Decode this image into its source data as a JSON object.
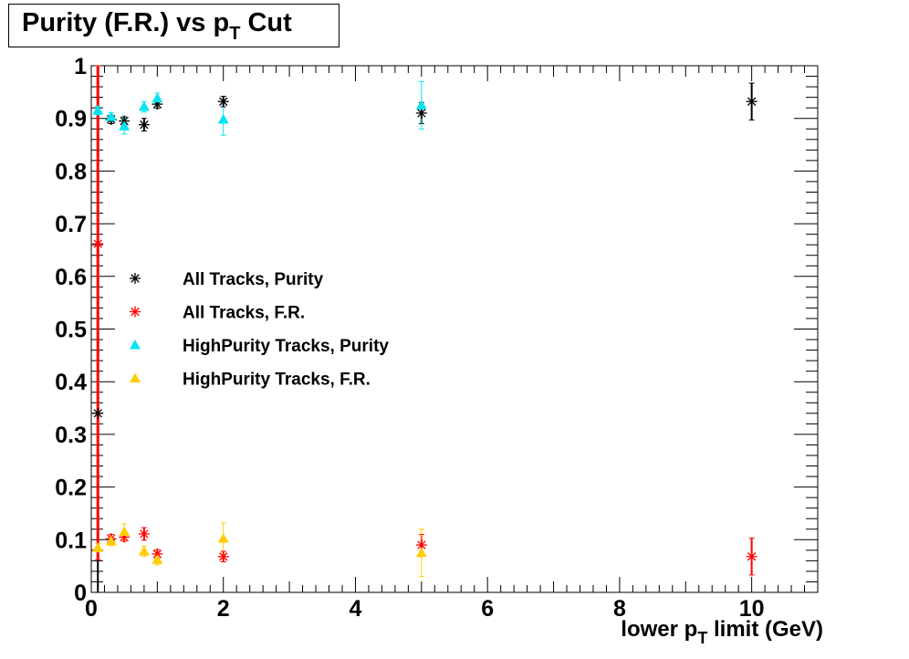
{
  "title_parts": {
    "main": "Purity (F.R.) vs p",
    "sub": "T",
    "end": " Cut"
  },
  "xlabel_parts": {
    "main": "lower p",
    "sub": "T",
    "end": " limit (GeV)"
  },
  "chart_data": {
    "type": "scatter",
    "title": "Purity (F.R.) vs pT Cut",
    "xlabel": "lower pT limit (GeV)",
    "ylabel": "",
    "xlim": [
      0,
      11
    ],
    "ylim": [
      0,
      1
    ],
    "xticks": [
      0,
      2,
      4,
      6,
      8,
      10
    ],
    "yticks": [
      0,
      0.1,
      0.2,
      0.3,
      0.4,
      0.5,
      0.6,
      0.7,
      0.8,
      0.9,
      1
    ],
    "ytick_labels": [
      "0",
      "0.1",
      "0.2",
      "0.3",
      "0.4",
      "0.5",
      "0.6",
      "0.7",
      "0.8",
      "0.9",
      "1"
    ],
    "xtick_labels": [
      "0",
      "2",
      "4",
      "6",
      "8",
      "10"
    ],
    "grid": false,
    "legend_position": "center-left",
    "series": [
      {
        "name": "All Tracks, Purity",
        "marker": "asterisk",
        "color": "#000000",
        "points": [
          {
            "x": 0.1,
            "y": 0.34,
            "err": 0.6
          },
          {
            "x": 0.3,
            "y": 0.898,
            "err": 0.008
          },
          {
            "x": 0.5,
            "y": 0.895,
            "err": 0.008
          },
          {
            "x": 0.8,
            "y": 0.888,
            "err": 0.012
          },
          {
            "x": 1.0,
            "y": 0.927,
            "err": 0.008
          },
          {
            "x": 2.0,
            "y": 0.932,
            "err": 0.01
          },
          {
            "x": 5.0,
            "y": 0.91,
            "err": 0.02
          },
          {
            "x": 10.0,
            "y": 0.932,
            "err": 0.035
          }
        ]
      },
      {
        "name": "All Tracks, F.R.",
        "marker": "asterisk",
        "color": "#ff0000",
        "points": [
          {
            "x": 0.1,
            "y": 0.662,
            "err": 0.6
          },
          {
            "x": 0.3,
            "y": 0.102,
            "err": 0.008
          },
          {
            "x": 0.5,
            "y": 0.105,
            "err": 0.008
          },
          {
            "x": 0.8,
            "y": 0.111,
            "err": 0.012
          },
          {
            "x": 1.0,
            "y": 0.073,
            "err": 0.008
          },
          {
            "x": 2.0,
            "y": 0.068,
            "err": 0.01
          },
          {
            "x": 5.0,
            "y": 0.09,
            "err": 0.02
          },
          {
            "x": 10.0,
            "y": 0.068,
            "err": 0.035
          }
        ]
      },
      {
        "name": "HighPurity Tracks, Purity",
        "marker": "triangle",
        "color": "#00e5f0",
        "points": [
          {
            "x": 0.1,
            "y": 0.915,
            "err": 0.008
          },
          {
            "x": 0.3,
            "y": 0.903,
            "err": 0.008
          },
          {
            "x": 0.5,
            "y": 0.885,
            "err": 0.015
          },
          {
            "x": 0.8,
            "y": 0.922,
            "err": 0.01
          },
          {
            "x": 1.0,
            "y": 0.938,
            "err": 0.01
          },
          {
            "x": 2.0,
            "y": 0.898,
            "err": 0.03
          },
          {
            "x": 5.0,
            "y": 0.925,
            "err": 0.045
          }
        ]
      },
      {
        "name": "HighPurity Tracks, F.R.",
        "marker": "triangle",
        "color": "#ffcc00",
        "points": [
          {
            "x": 0.1,
            "y": 0.085,
            "err": 0.008
          },
          {
            "x": 0.3,
            "y": 0.097,
            "err": 0.008
          },
          {
            "x": 0.5,
            "y": 0.115,
            "err": 0.015
          },
          {
            "x": 0.8,
            "y": 0.078,
            "err": 0.01
          },
          {
            "x": 1.0,
            "y": 0.062,
            "err": 0.01
          },
          {
            "x": 2.0,
            "y": 0.102,
            "err": 0.03
          },
          {
            "x": 5.0,
            "y": 0.075,
            "err": 0.045
          }
        ]
      }
    ]
  }
}
